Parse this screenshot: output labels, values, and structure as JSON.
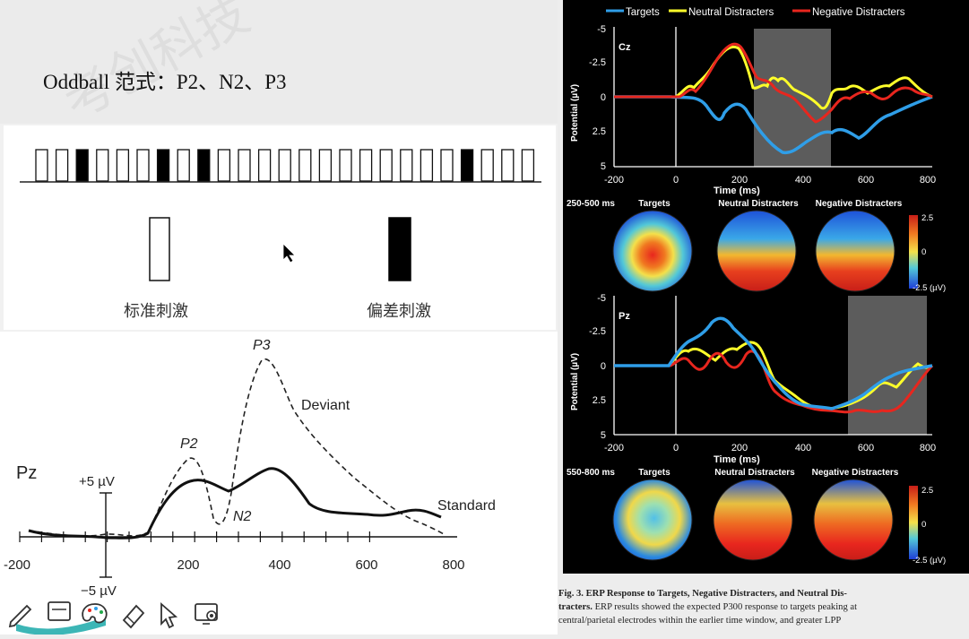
{
  "slide": {
    "title": "Oddball 范式：P2、N2、P3",
    "watermark": "考创科技"
  },
  "oddball": {
    "standard_label": "标准刺激",
    "deviant_label": "偏差刺激",
    "sequence": [
      "s",
      "s",
      "d",
      "s",
      "s",
      "s",
      "d",
      "s",
      "d",
      "s",
      "s",
      "s",
      "s",
      "s",
      "s",
      "s",
      "s",
      "s",
      "s",
      "s",
      "s",
      "d",
      "s",
      "s",
      "s"
    ]
  },
  "erp_plot": {
    "electrode": "Pz",
    "y_pos_label": "+5 µV",
    "y_neg_label": "−5 µV",
    "x_ticks": [
      "-200",
      "200",
      "400",
      "600",
      "800"
    ],
    "peaks": {
      "p2": "P2",
      "n2": "N2",
      "p3": "P3"
    },
    "deviant_label": "Deviant",
    "standard_label": "Standard"
  },
  "right_figure": {
    "legend": [
      "Targets",
      "Neutral Distracters",
      "Negative Distracters"
    ],
    "colors": {
      "targets": "#2f9ee8",
      "neutral": "#ffff2a",
      "negative": "#e8261e",
      "shade": "#5c5c5c"
    },
    "top": {
      "channel": "Cz",
      "y_ticks": [
        "-5",
        "-2.5",
        "0",
        "2.5",
        "5"
      ],
      "x_ticks": [
        "-200",
        "0",
        "200",
        "400",
        "600",
        "800"
      ],
      "xlabel": "Time (ms)",
      "ylabel": "Potential (µV)",
      "shade_ms": [
        250,
        500
      ]
    },
    "topo1": {
      "window": "250-500 ms",
      "labels": [
        "Targets",
        "Neutral Distracters",
        "Negative Distracters"
      ],
      "scale": [
        "2.5",
        "0",
        "-2.5 (µV)"
      ]
    },
    "bottom": {
      "channel": "Pz",
      "y_ticks": [
        "-5",
        "-2.5",
        "0",
        "2.5",
        "5"
      ],
      "x_ticks": [
        "-200",
        "0",
        "200",
        "400",
        "600",
        "800"
      ],
      "xlabel": "Time (ms)",
      "ylabel": "Potential (µV)",
      "shade_ms": [
        550,
        800
      ]
    },
    "topo2": {
      "window": "550-800 ms",
      "labels": [
        "Targets",
        "Neutral Distracters",
        "Negative Distracters"
      ],
      "scale": [
        "2.5",
        "0",
        "-2.5 (µV)"
      ]
    }
  },
  "caption": {
    "lead": "Fig. 3. ERP Response to Targets, Negative Distracters, and Neutral Dis-",
    "lead2": "tracters.",
    "line2": " ERP results showed the expected P300 response to targets peaking at",
    "line3": "central/parietal electrodes within the earlier time window, and greater LPP"
  },
  "toolbar": [
    "pen-icon",
    "whiteboard-icon",
    "palette-icon",
    "eraser-icon",
    "pointer-icon",
    "screen-record-icon"
  ]
}
